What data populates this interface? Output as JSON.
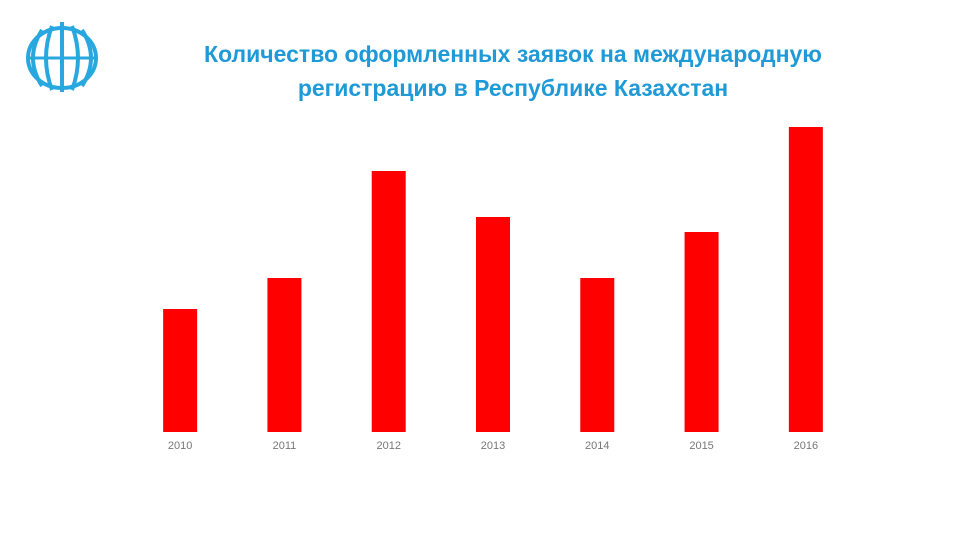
{
  "chart_data": {
    "type": "bar",
    "title": [
      "Количество оформленных заявок на международную",
      "регистрацию в Республике Казахстан"
    ],
    "categories": [
      "2010",
      "2011",
      "2012",
      "2013",
      "2014",
      "2015",
      "2016"
    ],
    "values": [
      123,
      154,
      261,
      215,
      154,
      200,
      305
    ],
    "color": "#ff0000"
  }
}
